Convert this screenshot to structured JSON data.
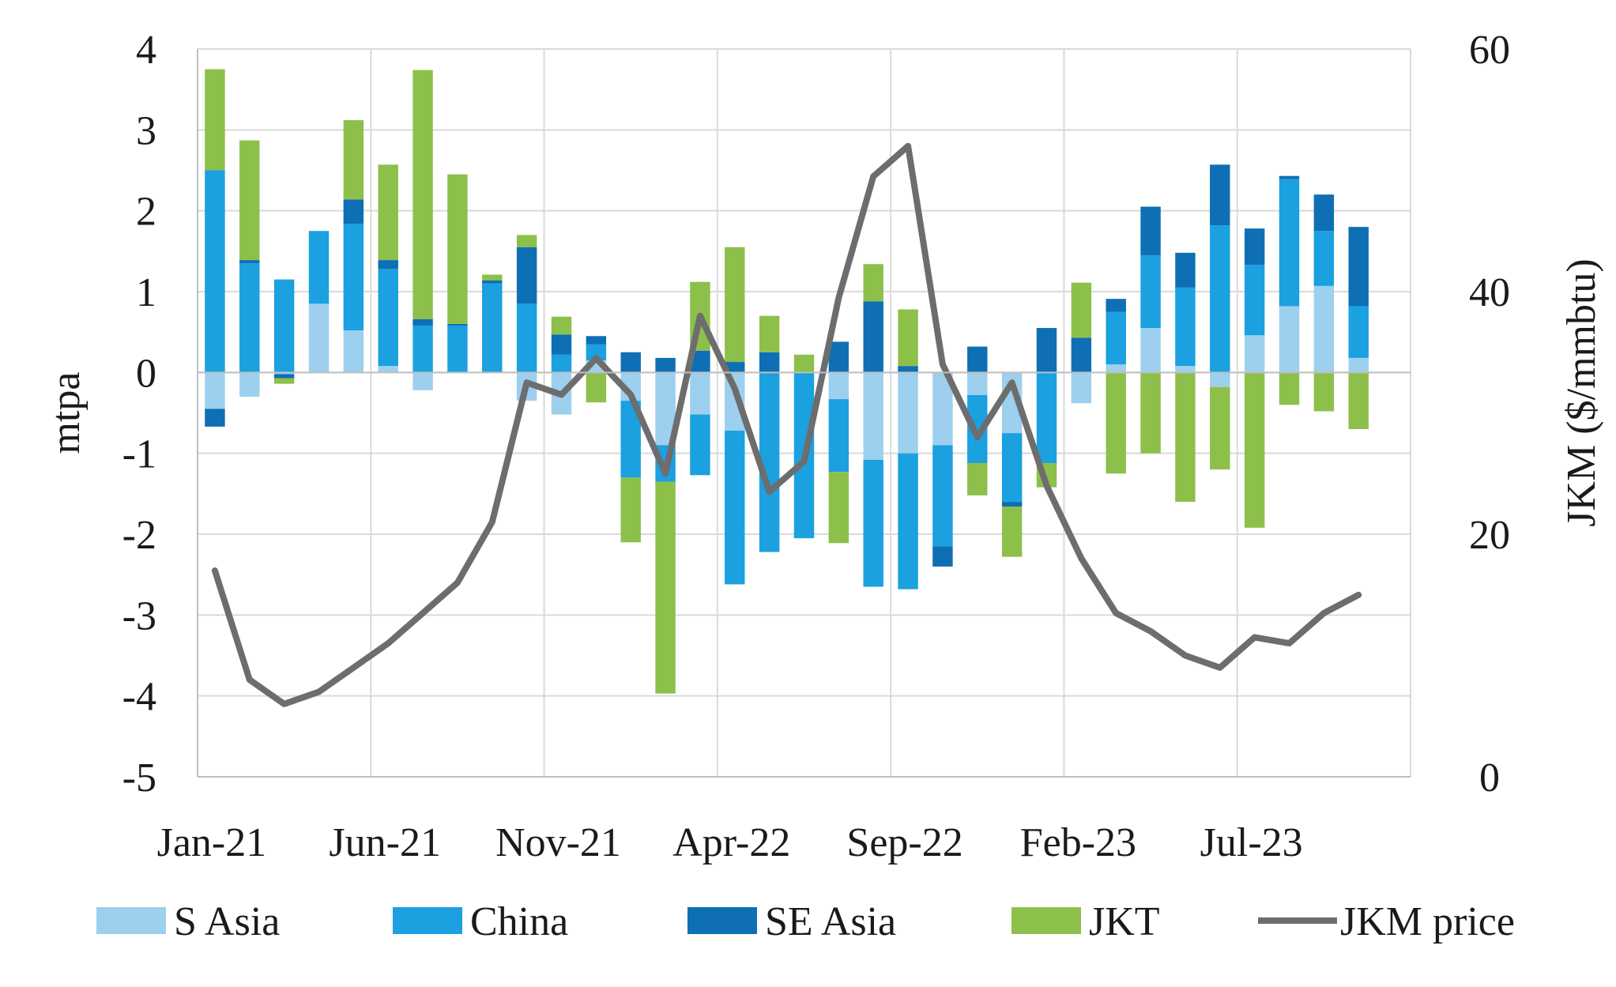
{
  "chart_data": {
    "type": "bar",
    "stacked": true,
    "x": [
      "Jan-21",
      "Feb-21",
      "Mar-21",
      "Apr-21",
      "May-21",
      "Jun-21",
      "Jul-21",
      "Aug-21",
      "Sep-21",
      "Oct-21",
      "Nov-21",
      "Dec-21",
      "Jan-22",
      "Feb-22",
      "Mar-22",
      "Apr-22",
      "May-22",
      "Jun-22",
      "Jul-22",
      "Aug-22",
      "Sep-22",
      "Oct-22",
      "Nov-22",
      "Dec-22",
      "Jan-23",
      "Feb-23",
      "Mar-23",
      "Apr-23",
      "May-23",
      "Jun-23",
      "Jul-23",
      "Aug-23",
      "Sep-23",
      "Oct-23",
      "Nov-23"
    ],
    "x_tick_labels": [
      "Jan-21",
      "Jun-21",
      "Nov-21",
      "Apr-22",
      "Sep-22",
      "Feb-23",
      "Jul-23"
    ],
    "ylabel": "mtpa",
    "y2label": "JKM ($/mmbtu)",
    "ylim": [
      -5,
      4
    ],
    "y_ticks": [
      4,
      3,
      2,
      1,
      0,
      -1,
      -2,
      -3,
      -4,
      -5
    ],
    "y2lim": [
      0,
      60
    ],
    "y2_ticks": [
      60,
      40,
      20,
      0
    ],
    "grid": true,
    "legend_position": "bottom",
    "series": [
      {
        "name": "S Asia",
        "type": "bar",
        "color": "#9dcfee",
        "values": [
          -0.45,
          -0.3,
          -0.02,
          0.85,
          0.52,
          0.08,
          -0.22,
          0.0,
          0.0,
          -0.35,
          -0.52,
          0.15,
          -0.35,
          -0.9,
          -0.52,
          -0.72,
          0.0,
          0.0,
          -0.33,
          -1.08,
          -1.0,
          -0.9,
          -0.28,
          -0.75,
          0.0,
          -0.38,
          0.1,
          0.55,
          0.08,
          -0.18,
          0.46,
          0.82,
          1.07,
          0.18,
          0.0
        ]
      },
      {
        "name": "China",
        "type": "bar",
        "color": "#1ba0e0",
        "values": [
          2.5,
          1.35,
          1.15,
          0.9,
          1.32,
          1.2,
          0.58,
          0.58,
          1.1,
          0.85,
          0.22,
          0.2,
          -0.95,
          -0.45,
          -0.75,
          -1.9,
          -2.22,
          -2.05,
          -0.9,
          -1.57,
          -1.68,
          -1.25,
          -0.84,
          -0.85,
          -1.12,
          0.0,
          0.65,
          0.9,
          0.97,
          1.82,
          0.87,
          1.57,
          0.68,
          0.64,
          0.0
        ]
      },
      {
        "name": "SE Asia",
        "type": "bar",
        "color": "#0e6fb4",
        "values": [
          -0.22,
          0.04,
          -0.05,
          0.0,
          0.3,
          0.11,
          0.08,
          0.02,
          0.04,
          0.7,
          0.25,
          0.1,
          0.25,
          0.18,
          0.27,
          0.13,
          0.25,
          0.0,
          0.38,
          0.88,
          0.08,
          -0.25,
          0.32,
          -0.06,
          0.55,
          0.43,
          0.16,
          0.6,
          0.43,
          0.75,
          0.45,
          0.04,
          0.45,
          0.98,
          0.0
        ]
      },
      {
        "name": "JKT",
        "type": "bar",
        "color": "#8dc04a",
        "values": [
          1.25,
          1.48,
          -0.07,
          0.0,
          0.98,
          1.18,
          3.08,
          1.85,
          0.07,
          0.15,
          0.22,
          -0.37,
          -0.8,
          -2.62,
          0.85,
          1.42,
          0.45,
          0.22,
          -0.88,
          0.46,
          0.7,
          0.0,
          -0.4,
          -0.62,
          -0.3,
          0.68,
          -1.25,
          -1.0,
          -1.6,
          -1.02,
          -1.92,
          -0.4,
          -0.48,
          -0.7,
          0.0
        ]
      },
      {
        "name": "JKM price",
        "type": "line",
        "color": "#6d6d6d",
        "axis": "right",
        "values": [
          17,
          8,
          6,
          7,
          9,
          11,
          13.5,
          16,
          21,
          32.5,
          31.5,
          34.5,
          31.5,
          25,
          38,
          32,
          23.5,
          26,
          39.5,
          49.5,
          52,
          34,
          28,
          32.5,
          24,
          18,
          13.5,
          12,
          10,
          9,
          11.5,
          11,
          13.5,
          15,
          null
        ]
      }
    ]
  },
  "legend": [
    {
      "label": "S Asia",
      "color": "#9dcfee",
      "shape": "box"
    },
    {
      "label": "China",
      "color": "#1ba0e0",
      "shape": "box"
    },
    {
      "label": "SE Asia",
      "color": "#0e6fb4",
      "shape": "box"
    },
    {
      "label": "JKT",
      "color": "#8dc04a",
      "shape": "box"
    },
    {
      "label": "JKM price",
      "color": "#6d6d6d",
      "shape": "line"
    }
  ]
}
